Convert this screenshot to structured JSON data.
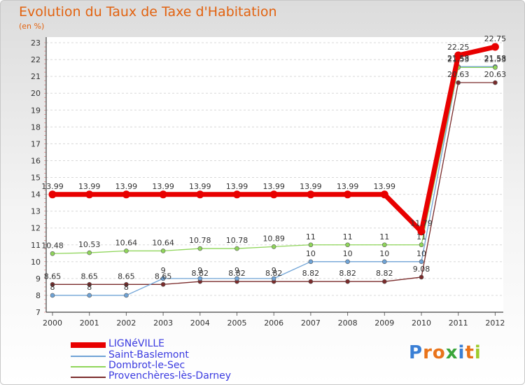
{
  "header": {
    "title": "Evolution du Taux de Taxe d'Habitation",
    "unit": "(en %)"
  },
  "colors": {
    "title": "#e2620f",
    "legend_text": "#3a3ae0"
  },
  "logo": {
    "text": "Proxiti",
    "letter_colors": [
      "#3a7fd5",
      "#e9731a",
      "#e9731a",
      "#3aa53a",
      "#3a7fd5",
      "#e9731a",
      "#9ecb2d"
    ]
  },
  "chart_data": {
    "type": "line",
    "x": [
      "2000",
      "2001",
      "2002",
      "2003",
      "2004",
      "2005",
      "2006",
      "2007",
      "2008",
      "2009",
      "2010",
      "2011",
      "2012"
    ],
    "yticks": [
      "7",
      "8",
      "9",
      "10",
      "11",
      "12",
      "13",
      "14",
      "15",
      "16",
      "17",
      "18",
      "19",
      "20",
      "21",
      "22",
      "23"
    ],
    "ylim": [
      7,
      23.3
    ],
    "grid": "horizontal dashed",
    "legend_position": "bottom-left",
    "series": [
      {
        "name": "LIGNéVILLE",
        "color": "#e80000",
        "width": 7,
        "marker": 5.5,
        "values": [
          13.99,
          13.99,
          13.99,
          13.99,
          13.99,
          13.99,
          13.99,
          13.99,
          13.99,
          13.99,
          11.79,
          22.25,
          22.75
        ],
        "labels": [
          "13.99",
          "13.99",
          "13.99",
          "13.99",
          "13.99",
          "13.99",
          "13.99",
          "13.99",
          "13.99",
          "13.99",
          "11.79",
          "22.25",
          "22.75"
        ]
      },
      {
        "name": "Saint-Baslemont",
        "color": "#6fa3d6",
        "width": 1.3,
        "marker": 3,
        "values": [
          8,
          8,
          8,
          9,
          9,
          9,
          9,
          10,
          10,
          10,
          10,
          21.58,
          21.58
        ],
        "labels": [
          "8",
          "8",
          "8",
          "9",
          "9",
          "9",
          "9",
          "10",
          "10",
          "10",
          "10",
          "21.58",
          "21.58"
        ]
      },
      {
        "name": "Dombrot-le-Sec",
        "color": "#8fd55a",
        "width": 1.3,
        "marker": 3,
        "values": [
          10.48,
          10.53,
          10.64,
          10.64,
          10.78,
          10.78,
          10.89,
          11,
          11,
          11,
          11,
          21.53,
          21.53
        ],
        "labels": [
          "10.48",
          "10.53",
          "10.64",
          "10.64",
          "10.78",
          "10.78",
          "10.89",
          "11",
          "11",
          "11",
          "11",
          "21.53",
          "21.53"
        ]
      },
      {
        "name": "Provenchères-lès-Darney",
        "color": "#7a2b2b",
        "width": 1.3,
        "marker": 3,
        "values": [
          8.65,
          8.65,
          8.65,
          8.65,
          8.82,
          8.82,
          8.82,
          8.82,
          8.82,
          8.82,
          9.08,
          20.63,
          20.63
        ],
        "labels": [
          "8.65",
          "8.65",
          "8.65",
          "8.65",
          "8.82",
          "8.82",
          "8.82",
          "8.82",
          "8.82",
          "8.82",
          "9.08",
          "20.63",
          "20.63"
        ]
      }
    ]
  }
}
